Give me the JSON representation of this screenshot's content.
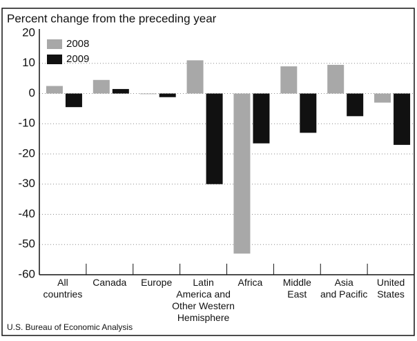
{
  "chart_data": {
    "type": "bar",
    "title": "Percent change from the preceding year",
    "source": "U.S. Bureau of Economic Analysis",
    "categories": [
      "All\ncountries",
      "Canada",
      "Europe",
      "Latin\nAmerica and\nOther Western\nHemisphere",
      "Africa",
      "Middle\nEast",
      "Asia\nand Pacific",
      "United\nStates"
    ],
    "series": [
      {
        "name": "2008",
        "color": "#a8a8a8",
        "values": [
          2.5,
          4.5,
          -0.2,
          11,
          -53,
          9,
          9.5,
          -3
        ]
      },
      {
        "name": "2009",
        "color": "#111111",
        "values": [
          -4.5,
          1.5,
          -1.2,
          -30,
          -16.5,
          -13,
          -7.5,
          -17
        ]
      }
    ],
    "ylim": [
      -60,
      20
    ],
    "yticks": [
      -60,
      -50,
      -40,
      -30,
      -20,
      -10,
      0,
      10,
      20
    ],
    "grid": true,
    "legend": "top-left"
  }
}
